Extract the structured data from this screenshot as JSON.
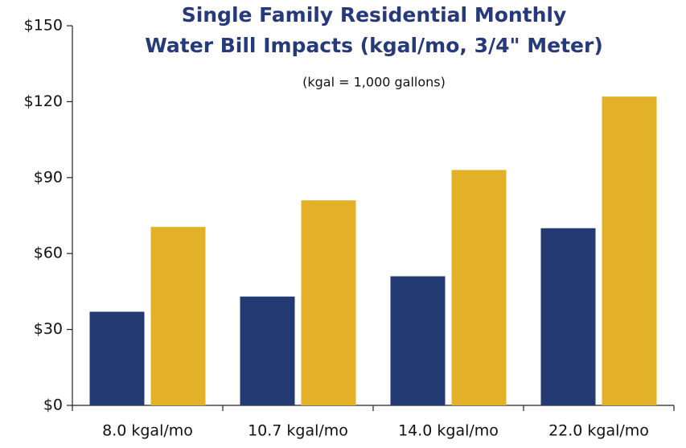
{
  "chart_data": {
    "type": "bar",
    "title": [
      "Single Family Residential Monthly",
      "Water Bill Impacts (kgal/mo, 3/4\" Meter)"
    ],
    "subtitle": "(kgal = 1,000 gallons)",
    "categories": [
      "8.0 kgal/mo",
      "10.7 kgal/mo",
      "14.0 kgal/mo",
      "22.0 kgal/mo"
    ],
    "series": [
      {
        "color": "#233a72",
        "values": [
          37,
          43,
          51,
          70
        ]
      },
      {
        "color": "#e3b127",
        "values": [
          70.5,
          81,
          93,
          122
        ]
      }
    ],
    "ylim": [
      0,
      150
    ],
    "yticks": [
      {
        "value": 0,
        "label": "$0"
      },
      {
        "value": 30,
        "label": "$30"
      },
      {
        "value": 60,
        "label": "$60"
      },
      {
        "value": 90,
        "label": "$90"
      },
      {
        "value": 120,
        "label": "$120"
      },
      {
        "value": 150,
        "label": "$150"
      }
    ],
    "grid": false
  }
}
